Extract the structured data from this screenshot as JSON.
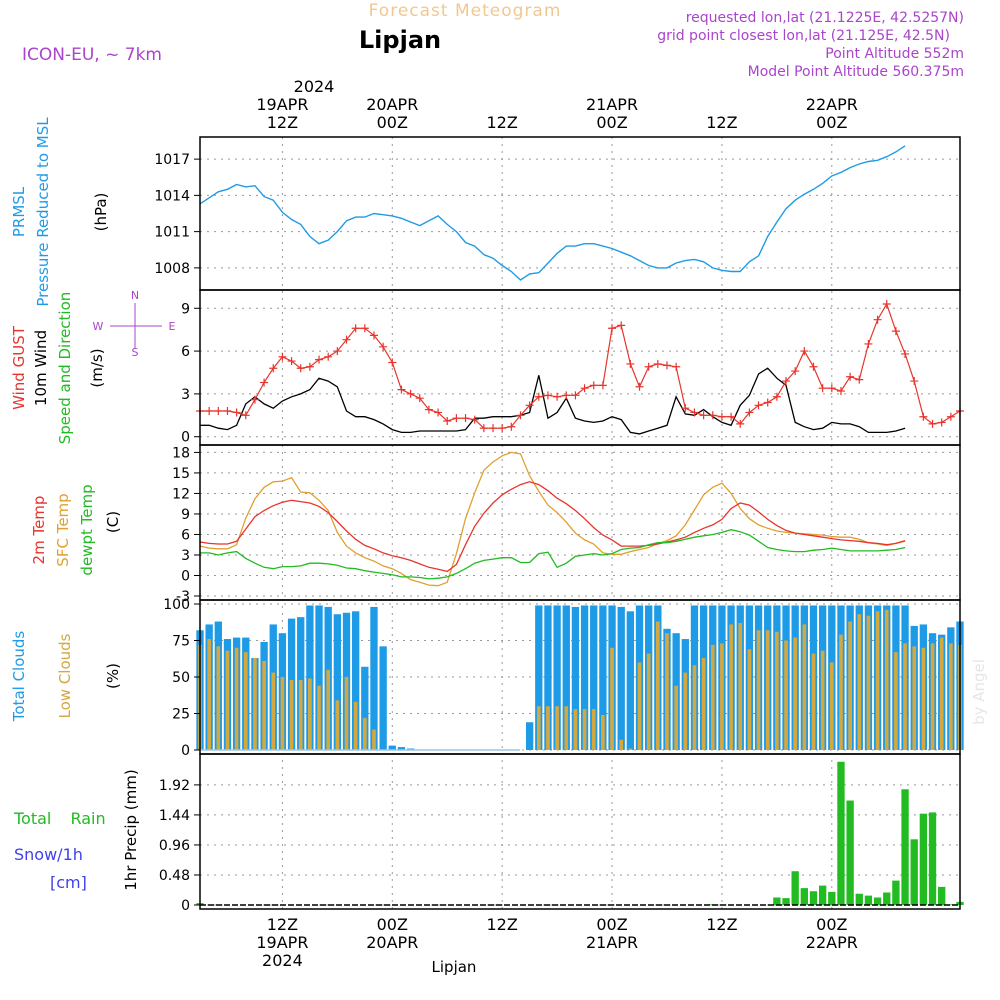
{
  "header": {
    "banner": "Forecast Meteogram",
    "location": "Lipjan",
    "model": "ICON-EU, ~ 7km",
    "requested": "requested lon,lat (21.1225E, 42.5257N)",
    "gridpoint": "grid point closest lon,lat (21.125E, 42.5N)",
    "point_alt": "Point Altitude 552m",
    "model_alt": "Model Point Altitude 560.375m"
  },
  "top_axis": {
    "year": "2024",
    "labels": [
      {
        "l1": "19APR",
        "l2": "12Z"
      },
      {
        "l1": "20APR",
        "l2": "00Z"
      },
      {
        "l1": "",
        "l2": "12Z"
      },
      {
        "l1": "21APR",
        "l2": "00Z"
      },
      {
        "l1": "",
        "l2": "12Z"
      },
      {
        "l1": "22APR",
        "l2": "00Z"
      }
    ]
  },
  "bottom_axis": {
    "labels": [
      {
        "l1": "12Z",
        "l2": "19APR",
        "l3": "2024"
      },
      {
        "l1": "00Z",
        "l2": "20APR",
        "l3": ""
      },
      {
        "l1": "12Z",
        "l2": "",
        "l3": ""
      },
      {
        "l1": "00Z",
        "l2": "21APR",
        "l3": ""
      },
      {
        "l1": "12Z",
        "l2": "",
        "l3": ""
      },
      {
        "l1": "00Z",
        "l2": "22APR",
        "l3": ""
      }
    ],
    "footer": "Lipjan"
  },
  "watermark": "by Angel",
  "colors": {
    "pressure": "#1e9be6",
    "gust": "#e8342c",
    "wind": "#000000",
    "t2m": "#e8342c",
    "sfc": "#e0a030",
    "dewpt": "#22bb22",
    "total_clouds": "#1e9be6",
    "low_clouds": "#d4a840",
    "rain": "#22bb22",
    "snow": "#4040ee",
    "header_purple": "#aa44cc",
    "banner": "#f0c890"
  },
  "panels": {
    "pressure": {
      "label1": "PRMSL",
      "label2": "Pressure Reduced to MSL",
      "unit": "(hPa)",
      "ticks": [
        "1008",
        "1011",
        "1014",
        "1017"
      ]
    },
    "wind": {
      "label_gust": "Wind GUST",
      "label_wind": "10m Wind",
      "label_dir": "Speed and Direction",
      "unit": "(m/s)",
      "ticks": [
        "0",
        "3",
        "6",
        "9"
      ],
      "compass": {
        "n": "N",
        "s": "S",
        "e": "E",
        "w": "W"
      }
    },
    "temp": {
      "label_t2m": "2m Temp",
      "label_sfc": "SFC Temp",
      "label_dew": "dewpt Temp",
      "unit": "(C)",
      "ticks": [
        "-3",
        "0",
        "3",
        "6",
        "9",
        "12",
        "15",
        "18"
      ]
    },
    "clouds": {
      "label_total": "Total Clouds",
      "label_low": "Low Clouds",
      "unit": "(%)",
      "ticks": [
        "0",
        "25",
        "50",
        "75",
        "100"
      ]
    },
    "precip": {
      "label_rain": "Total Rain",
      "label_snow": "Snow/1h",
      "label_cm": "[cm]",
      "label_axis": "1hr Precip (mm)",
      "ticks": [
        "0",
        "0.48",
        "0.96",
        "1.44",
        "1.92"
      ]
    }
  },
  "chart_data": {
    "type": "line",
    "x_unit": "hours from 2024-04-19 03Z",
    "x_range": [
      0,
      83
    ],
    "prmsl": {
      "ylim": [
        1006.5,
        1018.5
      ],
      "x": [
        0,
        1,
        2,
        3,
        4,
        5,
        6,
        7,
        8,
        9,
        10,
        11,
        12,
        13,
        14,
        15,
        16,
        17,
        18,
        19,
        20,
        21,
        22,
        23,
        24,
        25,
        26,
        27,
        28,
        29,
        30,
        31,
        32,
        33,
        34,
        35,
        36,
        37,
        38,
        39,
        40,
        41,
        42,
        43,
        44,
        45,
        46,
        47,
        48,
        49,
        50,
        51,
        52,
        53,
        54,
        55,
        56,
        57,
        58,
        59,
        60,
        61,
        62,
        63,
        64,
        65,
        66,
        67,
        68,
        69,
        70,
        71,
        72,
        73,
        74,
        75,
        76,
        77,
        78,
        79,
        80,
        81,
        82,
        83
      ],
      "values": [
        1013.3,
        1013.8,
        1014.3,
        1014.5,
        1014.9,
        1014.7,
        1014.8,
        1013.9,
        1013.6,
        1012.6,
        1012.0,
        1011.6,
        1010.6,
        1010.0,
        1010.3,
        1011.0,
        1011.9,
        1012.2,
        1012.2,
        1012.5,
        1012.4,
        1012.3,
        1012.1,
        1011.8,
        1011.5,
        1011.9,
        1012.3,
        1011.6,
        1011.0,
        1010.1,
        1009.8,
        1009.1,
        1008.8,
        1008.2,
        1007.7,
        1007.0,
        1007.5,
        1007.6,
        1008.4,
        1009.2,
        1009.8,
        1009.8,
        1010.0,
        1010.0,
        1009.8,
        1009.6,
        1009.3,
        1009.0,
        1008.6,
        1008.2,
        1008.0,
        1008.0,
        1008.4,
        1008.6,
        1008.7,
        1008.5,
        1008.0,
        1007.8,
        1007.7,
        1007.7,
        1008.5,
        1009.0,
        1010.6,
        1011.8,
        1012.9,
        1013.6,
        1014.1,
        1014.5,
        1015.0,
        1015.6,
        1015.9,
        1016.3,
        1016.6,
        1016.8,
        1016.9,
        1017.2,
        1017.6,
        1018.1,
        null,
        null,
        null,
        null,
        null,
        null
      ]
    },
    "wind": {
      "ylim": [
        -0.3,
        10.0
      ],
      "gust": [
        1.8,
        1.8,
        1.8,
        1.8,
        1.7,
        1.5,
        2.6,
        3.8,
        4.8,
        5.6,
        5.3,
        4.8,
        4.9,
        5.4,
        5.6,
        6.0,
        6.8,
        7.6,
        7.6,
        7.1,
        6.3,
        5.2,
        3.3,
        3.0,
        2.7,
        1.9,
        1.7,
        1.1,
        1.3,
        1.3,
        1.2,
        0.6,
        0.6,
        0.6,
        0.7,
        1.5,
        2.2,
        2.8,
        2.9,
        2.8,
        2.9,
        2.9,
        3.4,
        3.6,
        3.6,
        7.6,
        7.8,
        5.1,
        3.5,
        4.9,
        5.1,
        5.0,
        4.9,
        2.0,
        1.7,
        1.5,
        1.5,
        1.4,
        1.4,
        0.9,
        1.7,
        2.2,
        2.4,
        2.8,
        3.9,
        4.6,
        6.0,
        4.9,
        3.4,
        3.4,
        3.2,
        4.2,
        4.0,
        6.5,
        8.2,
        9.3,
        7.4,
        5.8,
        3.9,
        1.4,
        0.9,
        1.0,
        1.4,
        1.8
      ],
      "wind": [
        0.8,
        0.8,
        0.6,
        0.5,
        0.8,
        2.3,
        2.8,
        2.3,
        2.0,
        2.5,
        2.8,
        3.0,
        3.3,
        4.1,
        3.9,
        3.5,
        1.8,
        1.4,
        1.4,
        1.2,
        0.9,
        0.5,
        0.3,
        0.3,
        0.4,
        0.4,
        0.4,
        0.4,
        0.4,
        0.5,
        1.3,
        1.3,
        1.4,
        1.4,
        1.4,
        1.5,
        1.7,
        4.3,
        1.3,
        1.7,
        2.7,
        1.3,
        1.1,
        1.0,
        1.1,
        1.4,
        1.2,
        0.3,
        0.2,
        0.4,
        0.6,
        0.8,
        2.8,
        1.6,
        1.5,
        1.9,
        1.4,
        1.0,
        0.8,
        2.2,
        2.9,
        4.4,
        4.8,
        4.1,
        3.6,
        1.0,
        0.7,
        0.5,
        0.6,
        1.0,
        0.9,
        0.9,
        0.7,
        0.3,
        0.3,
        0.3,
        0.4,
        0.6,
        null,
        null,
        null,
        null,
        null,
        null
      ]
    },
    "temperature": {
      "ylim": [
        -3,
        18.5
      ],
      "t2m": [
        4.9,
        4.7,
        4.6,
        4.6,
        5.0,
        6.8,
        8.6,
        9.5,
        10.2,
        10.7,
        11.0,
        10.8,
        10.6,
        10.1,
        9.2,
        7.9,
        6.5,
        5.3,
        4.4,
        3.9,
        3.3,
        2.9,
        2.6,
        2.2,
        1.7,
        1.2,
        0.9,
        0.6,
        1.6,
        4.5,
        7.2,
        9.1,
        10.6,
        11.8,
        12.6,
        13.3,
        13.7,
        13.3,
        12.4,
        11.3,
        10.5,
        9.5,
        8.3,
        7.0,
        5.9,
        5.2,
        4.3,
        4.3,
        4.3,
        4.4,
        4.6,
        4.9,
        5.2,
        5.6,
        6.3,
        6.9,
        7.4,
        8.2,
        9.8,
        10.6,
        10.3,
        9.3,
        8.2,
        7.3,
        6.6,
        6.2,
        6.0,
        5.8,
        5.6,
        5.4,
        5.2,
        5.1,
        5.0,
        4.8,
        4.7,
        4.5,
        4.7,
        5.1,
        null,
        null,
        null,
        null,
        null,
        null
      ],
      "sfc": [
        4.3,
        4.0,
        3.9,
        3.9,
        4.5,
        8.4,
        11.2,
        12.9,
        13.7,
        13.8,
        14.3,
        12.2,
        12.1,
        11.0,
        9.5,
        6.3,
        4.3,
        3.3,
        2.6,
        2.1,
        1.4,
        1.0,
        0.3,
        -0.6,
        -1.0,
        -1.4,
        -1.5,
        -1.0,
        3.2,
        8.3,
        12.1,
        15.4,
        16.6,
        17.5,
        18.0,
        17.8,
        14.6,
        12.3,
        10.3,
        9.2,
        7.8,
        6.2,
        5.2,
        4.6,
        3.3,
        3.1,
        3.1,
        3.5,
        3.8,
        4.1,
        4.7,
        5.1,
        5.8,
        7.4,
        9.6,
        11.8,
        12.9,
        13.5,
        12.0,
        9.8,
        8.3,
        7.4,
        6.9,
        6.5,
        6.3,
        6.2,
        6.1,
        6.0,
        5.9,
        5.7,
        5.6,
        5.6,
        5.3,
        4.8,
        4.6,
        4.4,
        4.7,
        5.0,
        null,
        null,
        null,
        null,
        null,
        null
      ],
      "dewpt": [
        3.3,
        3.3,
        3.0,
        3.3,
        3.5,
        2.5,
        1.8,
        1.2,
        1.0,
        1.3,
        1.3,
        1.4,
        1.8,
        1.8,
        1.7,
        1.5,
        1.1,
        1.0,
        0.7,
        0.5,
        0.3,
        0.1,
        -0.2,
        -0.2,
        -0.3,
        -0.5,
        -0.4,
        -0.2,
        0.3,
        1.0,
        1.8,
        2.2,
        2.4,
        2.6,
        2.6,
        1.9,
        1.9,
        3.2,
        3.4,
        1.2,
        1.8,
        2.8,
        3.0,
        3.2,
        3.0,
        3.2,
        3.8,
        4.0,
        4.1,
        4.5,
        4.8,
        4.8,
        5.0,
        5.3,
        5.6,
        5.8,
        6.0,
        6.3,
        6.7,
        6.4,
        5.9,
        5.0,
        4.1,
        3.8,
        3.6,
        3.5,
        3.5,
        3.7,
        3.8,
        4.0,
        3.8,
        3.6,
        3.6,
        3.6,
        3.6,
        3.7,
        3.8,
        4.1,
        null,
        null,
        null,
        null,
        null,
        null
      ]
    },
    "clouds": {
      "ylim": [
        0,
        100
      ],
      "total": [
        82,
        86,
        88,
        76,
        77,
        77,
        63,
        74,
        86,
        80,
        90,
        91,
        99,
        99,
        98,
        93,
        94,
        95,
        57,
        98,
        71,
        3,
        2,
        1,
        0,
        0,
        0,
        0,
        0,
        0,
        0,
        0,
        0,
        0,
        0,
        0,
        19,
        99,
        99,
        99,
        99,
        98,
        99,
        99,
        99,
        99,
        98,
        95,
        99,
        99,
        99,
        83,
        80,
        76,
        99,
        99,
        99,
        99,
        99,
        99,
        99,
        99,
        99,
        99,
        99,
        99,
        99,
        99,
        99,
        99,
        99,
        99,
        99,
        99,
        99,
        99,
        99,
        99,
        85,
        86,
        80,
        79,
        84,
        88
      ],
      "low": [
        72,
        76,
        71,
        68,
        70,
        67,
        63,
        61,
        53,
        50,
        48,
        48,
        49,
        44,
        55,
        34,
        50,
        33,
        22,
        14,
        0,
        0,
        0,
        0,
        0,
        0,
        0,
        0,
        0,
        0,
        0,
        0,
        0,
        0,
        0,
        0,
        0,
        30,
        30,
        30,
        30,
        28,
        28,
        28,
        24,
        70,
        7,
        1,
        60,
        66,
        88,
        80,
        44,
        53,
        58,
        63,
        72,
        73,
        86,
        87,
        69,
        82,
        82,
        81,
        75,
        77,
        86,
        66,
        68,
        60,
        79,
        88,
        93,
        92,
        95,
        96,
        67,
        73,
        71,
        70,
        73,
        77,
        73,
        72
      ]
    },
    "precip": {
      "ylim": [
        0,
        2.35
      ],
      "rain": [
        0.03,
        0,
        0,
        0,
        0,
        0,
        0,
        0,
        0,
        0,
        0,
        0,
        0,
        0,
        0,
        0,
        0,
        0,
        0,
        0,
        0,
        0,
        0,
        0,
        0,
        0,
        0,
        0,
        0,
        0,
        0,
        0,
        0,
        0,
        0,
        0,
        0,
        0,
        0,
        0,
        0,
        0,
        0,
        0,
        0,
        0,
        0,
        0,
        0,
        0,
        0,
        0,
        0,
        0,
        0,
        0,
        0.01,
        0,
        0,
        0,
        0,
        0,
        0,
        0.12,
        0.11,
        0.54,
        0.27,
        0.22,
        0.31,
        0.21,
        2.29,
        1.67,
        0.18,
        0.15,
        0.12,
        0.2,
        0.39,
        1.85,
        1.05,
        1.46,
        1.48,
        0.29,
        0.01,
        0.05
      ],
      "snow": [
        0,
        0,
        0,
        0,
        0,
        0,
        0,
        0,
        0,
        0,
        0,
        0,
        0,
        0,
        0,
        0,
        0,
        0,
        0,
        0,
        0,
        0,
        0,
        0,
        0,
        0,
        0,
        0,
        0,
        0,
        0,
        0,
        0,
        0,
        0,
        0,
        0,
        0,
        0,
        0,
        0,
        0,
        0,
        0,
        0,
        0,
        0,
        0,
        0,
        0,
        0,
        0,
        0,
        0,
        0,
        0,
        0,
        0,
        0,
        0,
        0,
        0,
        0,
        0,
        0,
        0,
        0,
        0,
        0,
        0,
        0,
        0,
        0,
        0,
        0,
        0,
        0,
        0,
        0,
        0,
        0,
        0,
        0,
        0
      ]
    }
  }
}
